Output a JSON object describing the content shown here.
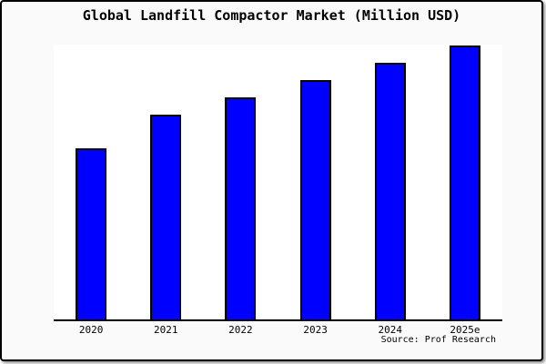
{
  "card": {
    "title": "Global Landfill Compactor Market (Million USD)",
    "source_label": "Source: Prof Research"
  },
  "chart_data": {
    "type": "bar",
    "title": "Global Landfill Compactor Market (Million USD)",
    "categories": [
      "2020",
      "2021",
      "2022",
      "2023",
      "2024",
      "2025e"
    ],
    "values": [
      62.5,
      74.8,
      81.1,
      87.4,
      93.7,
      100
    ],
    "value_scale_note": "no numeric y-axis shown; values estimated as percent of tallest (2025e) bar",
    "xlabel": "",
    "ylabel": "",
    "ylim": [
      0,
      100
    ],
    "grid": false,
    "legend": false,
    "source": "Source: Prof Research",
    "bar_color": "#0000FF",
    "bar_border_color": "#000000",
    "plot_bg": "#FFFFFF",
    "page_bg": "#FAFAFA",
    "frame_color": "#000000"
  }
}
